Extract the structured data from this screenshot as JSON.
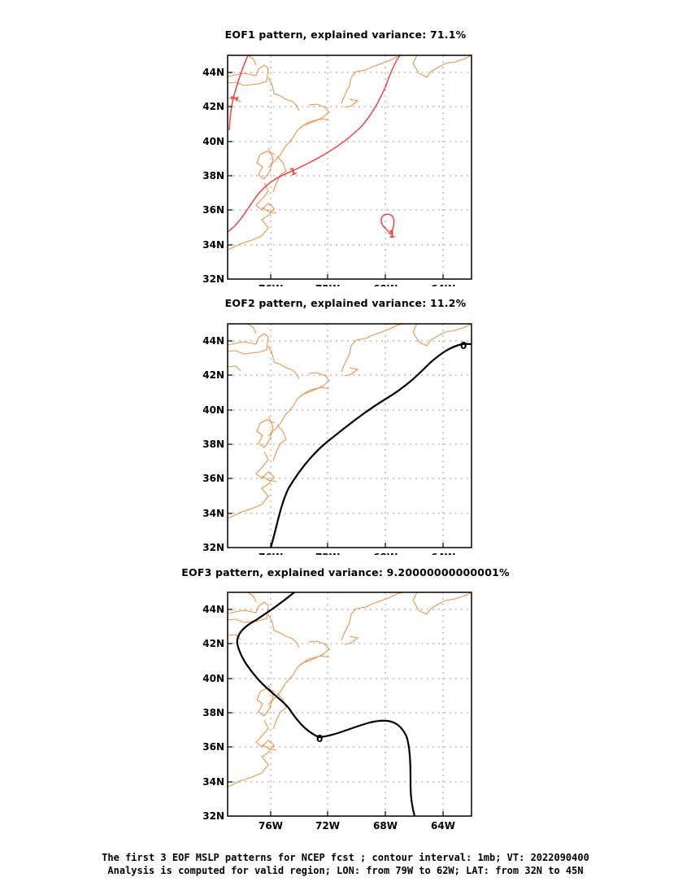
{
  "panels": [
    {
      "title": "EOF1 pattern, explained variance: 71.1%",
      "contour_color": "#ee4444",
      "contour_labels": [
        "1",
        "1",
        "1"
      ]
    },
    {
      "title": "EOF2 pattern, explained variance: 11.2%",
      "contour_color": "#000000",
      "contour_labels": [
        "0"
      ]
    },
    {
      "title": "EOF3 pattern, explained variance: 9.20000000000001%",
      "contour_color": "#000000",
      "contour_labels": [
        "0"
      ]
    }
  ],
  "axes": {
    "x_ticks": [
      "76W",
      "72W",
      "68W",
      "64W"
    ],
    "y_ticks": [
      "44N",
      "42N",
      "40N",
      "38N",
      "36N",
      "34N",
      "32N"
    ]
  },
  "coastline_color": "#e8954a",
  "caption": {
    "line1": "The first 3 EOF MSLP patterns for NCEP fcst ; contour interval: 1mb; VT: 2022090400",
    "line2": "Analysis is computed for valid region; LON: from 79W to 62W; LAT: from 32N to 45N"
  }
}
